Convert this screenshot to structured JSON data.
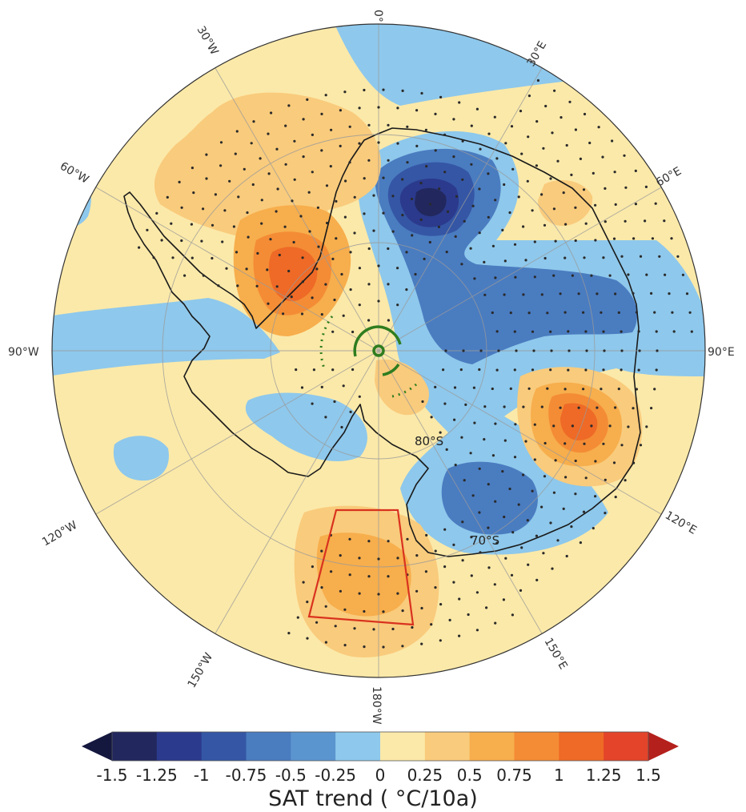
{
  "map": {
    "lon_labels": {
      "lon_0": "0°",
      "lon_30e": "30°E",
      "lon_60e": "60°E",
      "lon_90e": "90°E",
      "lon_120e": "120°E",
      "lon_150e": "150°E",
      "lon_180": "180°W",
      "lon_150w": "150°W",
      "lon_120w": "120°W",
      "lon_90w": "90°W",
      "lon_60w": "60°W",
      "lon_30w": "30°W"
    },
    "lat_labels": {
      "lat_80s": "80°S",
      "lat_70s": "70°S"
    },
    "colors": {
      "land_outline": "#1a1a1a",
      "green_marker": "#2f7d1f",
      "red_box": "#d9321f",
      "ocean_neutral": "#fbe9a9"
    }
  },
  "colorbar": {
    "title": "SAT trend (  °C/10a)",
    "ticks": [
      "-1.5",
      "-1.25",
      "-1",
      "-0.75",
      "-0.5",
      "-0.25",
      "0",
      "0.25",
      "0.5",
      "0.75",
      "1",
      "1.25",
      "1.5"
    ],
    "colors": [
      "#22285e",
      "#2b3a8c",
      "#3556a5",
      "#4a7cc0",
      "#5b95cf",
      "#8ec8ec",
      "#fbe9a9",
      "#f9cb7c",
      "#f7ae4c",
      "#f48c35",
      "#ee6a26",
      "#e3442a"
    ],
    "under_color": "#14173e",
    "over_color": "#b4201c"
  }
}
